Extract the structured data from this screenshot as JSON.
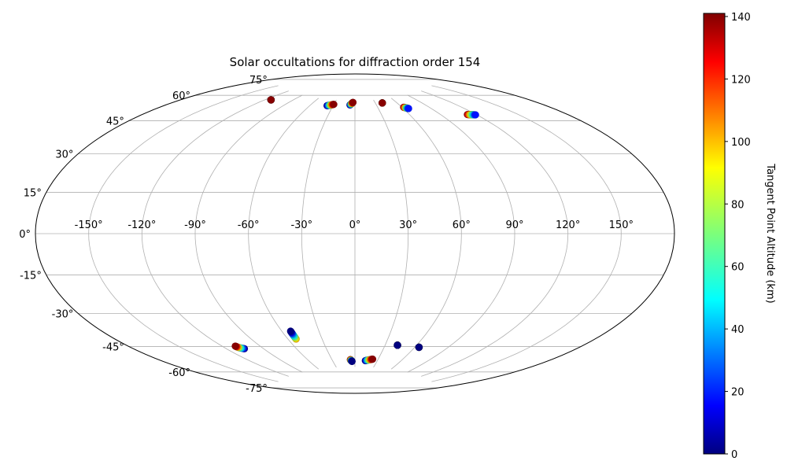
{
  "chart_data": {
    "type": "scatter",
    "title": "Solar occultations for diffraction order 154",
    "projection": "aitoff",
    "grid": true,
    "lon_tick_labels": [
      "-150°",
      "-120°",
      "-90°",
      "-60°",
      "-30°",
      "0°",
      "30°",
      "60°",
      "90°",
      "120°",
      "150°"
    ],
    "lon_ticks": [
      -150,
      -120,
      -90,
      -60,
      -30,
      0,
      30,
      60,
      90,
      120,
      150
    ],
    "lat_tick_labels": [
      "75°",
      "60°",
      "45°",
      "30°",
      "15°",
      "0°",
      "-15°",
      "-30°",
      "-45°",
      "-60°",
      "-75°"
    ],
    "lat_ticks": [
      75,
      60,
      45,
      30,
      15,
      0,
      -15,
      -30,
      -45,
      -60,
      -75
    ],
    "colorbar": {
      "label": "Tangent Point Altitude (km)",
      "range": [
        0,
        141
      ],
      "colormap": "jet",
      "tick_labels": [
        "0",
        "20",
        "40",
        "60",
        "80",
        "100",
        "120",
        "140"
      ],
      "ticks": [
        0,
        20,
        40,
        60,
        80,
        100,
        120,
        140
      ]
    },
    "tracks": [
      {
        "lon": [
          -106,
          -109,
          -110
        ],
        "lat": [
          -59,
          -58,
          -57
        ],
        "alt": [
          0,
          140
        ],
        "dir": 1
      },
      {
        "lon": [
          -53.0,
          -53.0
        ],
        "lat": [
          -53.5,
          -58.0
        ],
        "alt": [
          0,
          100
        ],
        "dir": -1
      },
      {
        "lon": [
          -4.0,
          -6.0
        ],
        "lat": [
          -72.0,
          -71.0
        ],
        "alt": [
          0,
          140
        ],
        "dir": -1
      },
      {
        "lon": [
          14.0,
          23.0
        ],
        "lat": [
          -71.5,
          -70.5
        ],
        "alt": [
          0,
          140
        ],
        "dir": 1
      },
      {
        "lon": [
          42.0,
          42.0
        ],
        "lat": [
          -62.0,
          -62.0
        ],
        "alt": [
          0,
          0
        ],
        "dir": 1
      },
      {
        "lon": [
          64.0,
          64.0
        ],
        "lat": [
          -62.0,
          -62.0
        ],
        "alt": [
          0,
          0
        ],
        "dir": 1
      },
      {
        "lon": [
          -114,
          -114
        ],
        "lat": [
          69.5,
          69.5
        ],
        "alt": [
          140,
          140
        ],
        "dir": 1
      },
      {
        "lon": [
          -38.0,
          -30.0
        ],
        "lat": [
          71.5,
          72.5
        ],
        "alt": [
          0,
          140
        ],
        "dir": 1
      },
      {
        "lon": [
          -7.0,
          -3.0
        ],
        "lat": [
          72.5,
          74.0
        ],
        "alt": [
          0,
          140
        ],
        "dir": 1
      },
      {
        "lon": [
          40.0,
          40.0
        ],
        "lat": [
          73.0,
          73.0
        ],
        "alt": [
          20,
          140
        ],
        "dir": 1
      },
      {
        "lon": [
          62.0,
          66.0
        ],
        "lat": [
          69.5,
          68.5
        ],
        "alt": [
          140,
          20
        ],
        "dir": 1
      },
      {
        "lon": [
          113.0,
          119.0
        ],
        "lat": [
          60.5,
          59.5
        ],
        "alt": [
          140,
          20
        ],
        "dir": 1
      }
    ]
  }
}
